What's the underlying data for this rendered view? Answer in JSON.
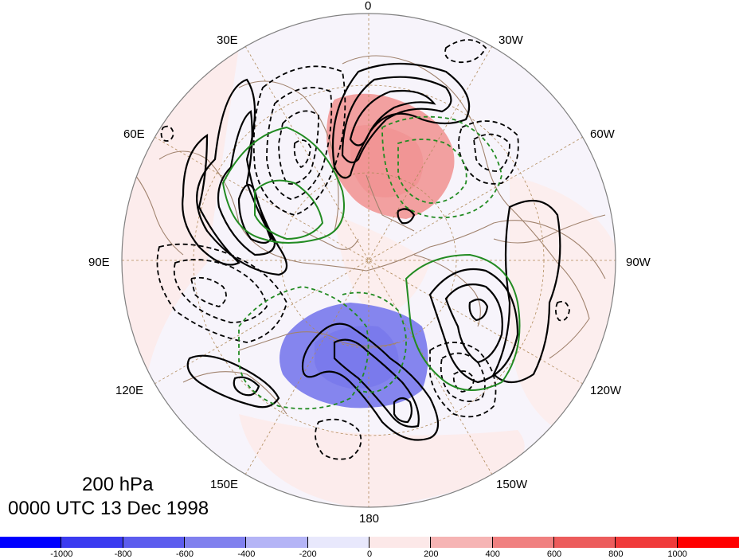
{
  "map": {
    "level_label": "200 hPa",
    "time_label": "0000 UTC 13 Dec 1998",
    "longitude_labels": [
      "0",
      "30W",
      "60W",
      "90W",
      "120W",
      "150W",
      "180",
      "150E",
      "120E",
      "90E",
      "60E",
      "30E"
    ],
    "projection": "north polar stereographic",
    "colors": {
      "negative_shading": "#7070ee",
      "positive_shading": "#f08080",
      "solid_contours": "#000000",
      "dashed_contours": "#000000",
      "green_contours": "#228b22",
      "coastlines": "#a0826d",
      "gridlines": "#b08a5a"
    }
  },
  "colorbar": {
    "ticks": [
      "-1000",
      "-800",
      "-600",
      "-400",
      "-200",
      "0",
      "200",
      "400",
      "600",
      "800",
      "1000"
    ],
    "colors": [
      "#0000ff",
      "#3a3af0",
      "#5c5cee",
      "#8080ee",
      "#b4b4f6",
      "#e8e8fc",
      "#fce8e8",
      "#f6b4b4",
      "#f08080",
      "#ec5c5c",
      "#f03a3a",
      "#ff0000"
    ]
  }
}
